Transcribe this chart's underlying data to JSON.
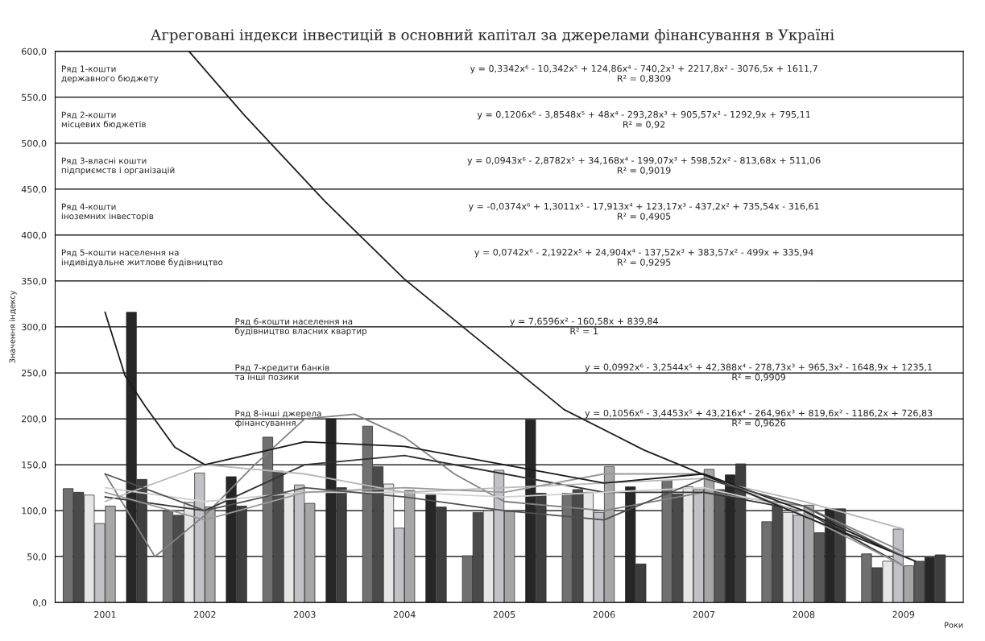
{
  "chart_data": {
    "type": "bar",
    "title": "Агреговані індекси інвестицій в основний капітал за джерелами фінансування в Україні",
    "ylabel": "Значення індексу",
    "xlabel": "Роки",
    "x": [
      2001,
      2002,
      2003,
      2004,
      2005,
      2006,
      2007,
      2008,
      2009
    ],
    "xlim": [
      2000.5,
      2009.6
    ],
    "xticks": [
      2001,
      2002,
      2003,
      2004,
      2005,
      2006,
      2007,
      2008,
      2009
    ],
    "ylim": [
      0,
      600
    ],
    "yticks": [
      {
        "value": 0,
        "label": "0,0"
      },
      {
        "value": 50,
        "label": "50,0"
      },
      {
        "value": 100,
        "label": "100,0"
      },
      {
        "value": 150,
        "label": "150,0"
      },
      {
        "value": 200,
        "label": "200,0"
      },
      {
        "value": 250,
        "label": "250,0"
      },
      {
        "value": 300,
        "label": "300,0"
      },
      {
        "value": 350,
        "label": "350,0"
      },
      {
        "value": 400,
        "label": "400,0"
      },
      {
        "value": 450,
        "label": "450,0"
      },
      {
        "value": 500,
        "label": "500,0"
      },
      {
        "value": 550,
        "label": "550,0"
      },
      {
        "value": 600,
        "label": "600,0"
      }
    ],
    "grid": "y",
    "legend": false,
    "series": [
      {
        "color": "#707070",
        "values": [
          124,
          100,
          180,
          192,
          51,
          119,
          133,
          88,
          53
        ]
      },
      {
        "color": "#4a4a4a",
        "values": [
          120,
          95,
          143,
          148,
          98,
          123,
          118,
          106,
          38
        ]
      },
      {
        "color": "#e6e6e6",
        "values": [
          117,
          109,
          119,
          129,
          100,
          120,
          126,
          98,
          45
        ]
      },
      {
        "color": "#c2c2c6",
        "values": [
          86,
          141,
          128,
          81,
          144,
          98,
          123,
          95,
          80
        ]
      },
      {
        "color": "#a6a6a6",
        "values": [
          105,
          104,
          108,
          122,
          99,
          148,
          145,
          106,
          40
        ]
      },
      {
        "color": "#575757",
        "values": [
          null,
          null,
          null,
          null,
          null,
          null,
          123,
          76,
          45
        ]
      },
      {
        "color": "#262626",
        "values": [
          316,
          137,
          200,
          117,
          199,
          126,
          139,
          102,
          49
        ]
      },
      {
        "color": "#3e3e3e",
        "values": [
          134,
          105,
          125,
          104,
          119,
          42,
          151,
          102,
          52
        ]
      },
      {
        "type": "line",
        "color": "#808080",
        "x": [
          2001,
          2001.5,
          2002,
          2002.5,
          2003,
          2003.5,
          2004,
          2004.5,
          2005,
          2006,
          2007,
          2008,
          2009
        ],
        "values": [
          140,
          50,
          95,
          150,
          200,
          205,
          180,
          140,
          110,
          100,
          120,
          105,
          55
        ]
      },
      {
        "type": "line",
        "color": "#333333",
        "x": [
          2001,
          2002,
          2003,
          2004,
          2005,
          2006,
          2007,
          2008,
          2009
        ],
        "values": [
          115,
          100,
          150,
          160,
          140,
          120,
          120,
          100,
          40
        ]
      },
      {
        "type": "line",
        "color": "#d0d0d0",
        "x": [
          2001,
          2002,
          2003,
          2004,
          2005,
          2006,
          2007,
          2008,
          2009
        ],
        "values": [
          125,
          110,
          120,
          120,
          115,
          120,
          125,
          100,
          50
        ]
      },
      {
        "type": "line",
        "color": "#b8b8b8",
        "x": [
          2001,
          2002,
          2003,
          2004,
          2005,
          2006,
          2007,
          2008,
          2009
        ],
        "values": [
          110,
          150,
          140,
          120,
          125,
          130,
          135,
          110,
          80
        ]
      },
      {
        "type": "line",
        "color": "#999999",
        "x": [
          2001,
          2002,
          2003,
          2004,
          2005,
          2006,
          2007,
          2008,
          2009
        ],
        "values": [
          120,
          90,
          120,
          125,
          120,
          140,
          140,
          95,
          40
        ]
      },
      {
        "type": "line",
        "color": "#1e1e1e",
        "x": [
          2001.84,
          2002.4,
          2003.2,
          2004.0,
          2004.8,
          2005.6,
          2006.4,
          2007.2,
          2008.0,
          2009.12
        ],
        "values": [
          600,
          530,
          437,
          352,
          281,
          210,
          166,
          130,
          94,
          45
        ]
      },
      {
        "type": "line",
        "color": "#1a1a1a",
        "x": [
          2001,
          2001.2,
          2001.4,
          2001.7,
          2002,
          2003,
          2004,
          2005,
          2006,
          2007,
          2008,
          2009
        ],
        "values": [
          316,
          247,
          214,
          169,
          150,
          175,
          170,
          150,
          130,
          140,
          100,
          50
        ]
      },
      {
        "type": "line",
        "color": "#505050",
        "x": [
          2001,
          2002,
          2003,
          2004,
          2005,
          2006,
          2007,
          2008,
          2009
        ],
        "values": [
          140,
          100,
          125,
          115,
          100,
          90,
          135,
          105,
          50
        ]
      }
    ],
    "annotations": [
      "Ряд 1-кошти державного бюджету",
      "y = 0,3342x⁶ - 10,342x⁵ + 124,86x⁴ - 740,2x³ + 2217,8x² - 3076,5x + 1611,7\nR² = 0,8309",
      "Ряд 2-кошти місцевих бюджетів",
      "y = 0,1206x⁶ - 3,8548x⁵ + 48x⁴ - 293,28x³ + 905,57x² - 1292,9x + 795,11\nR² = 0,92",
      "Ряд 3-власні кошти підприємств і організацій",
      "y = 0,0943x⁶ - 2,8782x⁵ + 34,168x⁴ - 199,07x³ + 598,52x² - 813,68x + 511,06\nR² = 0,9019",
      "Ряд 4-кошти іноземних інвесторів",
      "y = -0,0374x⁶ + 1,3011x⁵ - 17,913x⁴ + 123,17x³ - 437,2x² + 735,54x - 316,61\nR² = 0,4905",
      "Ряд 5-кошти населення на індивідуальне житлове будівництво",
      "y = 0,0742x⁶ - 2,1922x⁵ + 24,904x⁴ - 137,52x³ + 383,57x² - 499x + 335,94\nR² = 0,9295",
      "Ряд 6-кошти населення на будівництво власних квартир",
      "y = 7,6596x² - 160,58x + 839,84\nR² = 1",
      "Ряд 7-кредити банків та інші позики",
      "y = 0,0992x⁶ - 3,2544x⁵ + 42,388x⁴ - 278,73x³ + 965,3x² - 1648,9x + 1235,1\nR² = 0,9909",
      "Ряд 8-інші джерела фінансування",
      "y = 0,1056x⁶ - 3,4453x⁵ + 43,216x⁴ - 264,96x³ + 819,6x² - 1186,2x + 726,83\nR² = 0,9626"
    ]
  }
}
